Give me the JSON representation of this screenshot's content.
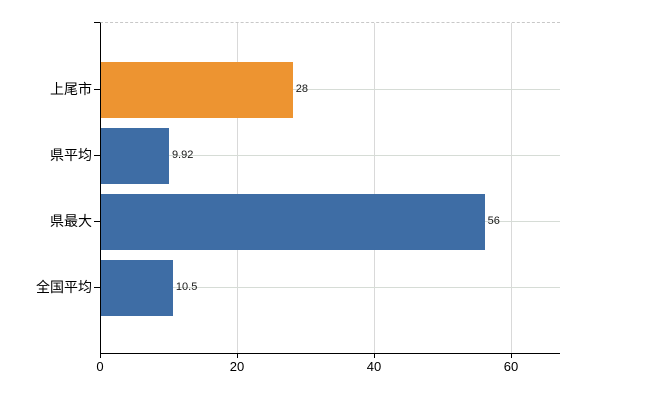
{
  "chart_data": {
    "type": "bar",
    "orientation": "horizontal",
    "title": "",
    "xlabel": "",
    "ylabel": "",
    "categories": [
      "上尾市",
      "県平均",
      "県最大",
      "全国平均"
    ],
    "values": [
      28,
      9.92,
      56,
      10.5
    ],
    "value_labels": [
      "28",
      "9.92",
      "56",
      "10.5"
    ],
    "bar_colors": [
      "#ED9431",
      "#3E6DA5",
      "#3E6DA5",
      "#3E6DA5"
    ],
    "x_ticks": [
      0,
      20,
      40,
      60
    ],
    "x_tick_labels": [
      "0",
      "20",
      "40",
      "60"
    ],
    "xlim": [
      0,
      67.2
    ],
    "grid": "both",
    "legend": "none"
  },
  "colors": {
    "bar_blue": "#3E6DA5",
    "bar_orange": "#ED9431",
    "axis": "#000000",
    "gridline": "#d9d9d9",
    "top_border_dashed": "#c8c8c8",
    "background": "#ffffff"
  }
}
